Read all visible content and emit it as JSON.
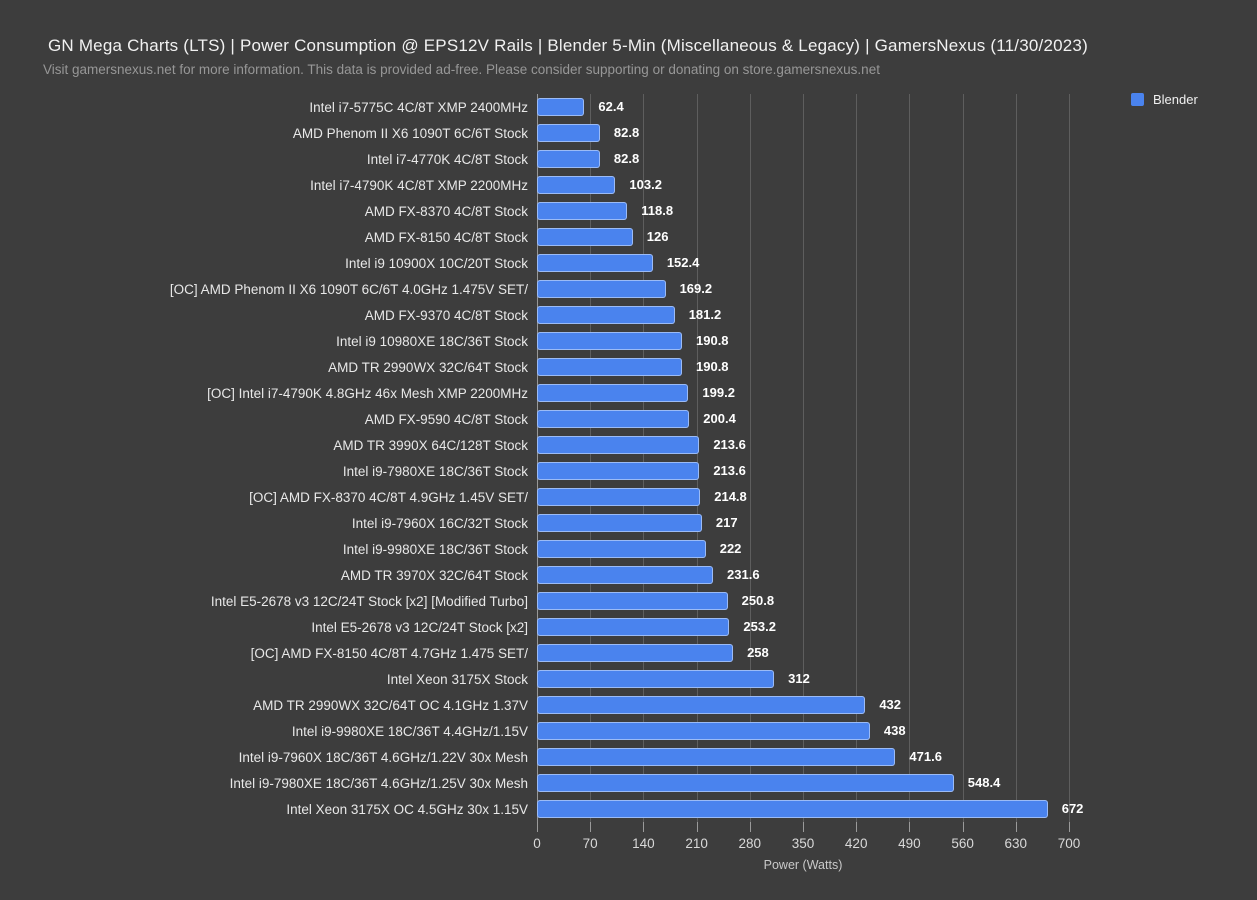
{
  "header": {
    "title": "GN Mega Charts (LTS) | Power Consumption @ EPS12V Rails | Blender 5-Min (Miscellaneous & Legacy) | GamersNexus (11/30/2023)",
    "subtitle": "Visit gamersnexus.net for more information. This data is provided ad-free. Please consider supporting or donating on store.gamersnexus.net"
  },
  "legend": {
    "label": "Blender",
    "color": "#4a83ee"
  },
  "chart_data": {
    "type": "bar",
    "orientation": "horizontal",
    "title": "GN Mega Charts (LTS) | Power Consumption @ EPS12V Rails | Blender 5-Min (Miscellaneous & Legacy) | GamersNexus (11/30/2023)",
    "series_name": "Blender",
    "xlabel": "Power (Watts)",
    "ylabel": "",
    "xlim": [
      0,
      700
    ],
    "xticks": [
      0,
      70,
      140,
      210,
      280,
      350,
      420,
      490,
      560,
      630,
      700
    ],
    "grid": true,
    "legend_position": "top-right",
    "bar_color": "#4a83ee",
    "background_color": "#3d3d3d",
    "categories": [
      "Intel i7-5775C 4C/8T XMP 2400MHz",
      "AMD Phenom II X6 1090T 6C/6T Stock",
      "Intel i7-4770K 4C/8T Stock",
      "Intel i7-4790K 4C/8T XMP 2200MHz",
      "AMD FX-8370 4C/8T Stock",
      "AMD FX-8150 4C/8T Stock",
      "Intel i9 10900X 10C/20T Stock",
      "[OC] AMD Phenom II X6 1090T 6C/6T 4.0GHz 1.475V SET/",
      "AMD FX-9370 4C/8T Stock",
      "Intel i9 10980XE 18C/36T Stock",
      "AMD TR 2990WX 32C/64T Stock",
      "[OC] Intel i7-4790K 4.8GHz 46x Mesh XMP 2200MHz",
      "AMD FX-9590 4C/8T Stock",
      "AMD TR 3990X 64C/128T Stock",
      "Intel i9-7980XE 18C/36T Stock",
      "[OC] AMD FX-8370 4C/8T 4.9GHz 1.45V SET/",
      "Intel i9-7960X 16C/32T Stock",
      "Intel i9-9980XE 18C/36T Stock",
      "AMD TR 3970X 32C/64T Stock",
      "Intel E5-2678 v3 12C/24T Stock [x2] [Modified Turbo]",
      "Intel E5-2678 v3 12C/24T Stock [x2]",
      "[OC] AMD FX-8150 4C/8T 4.7GHz 1.475 SET/",
      "Intel Xeon 3175X Stock",
      "AMD TR 2990WX 32C/64T OC 4.1GHz 1.37V",
      "Intel i9-9980XE 18C/36T 4.4GHz/1.15V",
      "Intel i9-7960X 18C/36T 4.6GHz/1.22V 30x Mesh",
      "Intel i9-7980XE 18C/36T 4.6GHz/1.25V 30x Mesh",
      "Intel Xeon 3175X OC 4.5GHz 30x 1.15V"
    ],
    "values": [
      62.4,
      82.8,
      82.8,
      103.2,
      118.8,
      126,
      152.4,
      169.2,
      181.2,
      190.8,
      190.8,
      199.2,
      200.4,
      213.6,
      213.6,
      214.8,
      217,
      222,
      231.6,
      250.8,
      253.2,
      258,
      312,
      432,
      438,
      471.6,
      548.4,
      672
    ]
  }
}
